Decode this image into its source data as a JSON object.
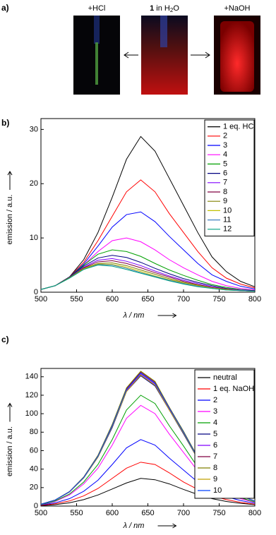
{
  "panel_a": {
    "panel_label": "a)",
    "photos": [
      {
        "label": "+HCl"
      },
      {
        "label_parts": [
          "1",
          " in H",
          "2",
          "O"
        ]
      },
      {
        "label": "+NaOH"
      }
    ]
  },
  "chart_data": [
    {
      "type": "line",
      "panel_label": "b)",
      "xlabel": "λ / nm",
      "ylabel": "emission / a.u.",
      "x": [
        500,
        520,
        540,
        560,
        580,
        600,
        620,
        640,
        660,
        680,
        700,
        720,
        740,
        760,
        780,
        800
      ],
      "xlim": [
        500,
        800
      ],
      "ylim": [
        0,
        32
      ],
      "xticks": [
        500,
        550,
        600,
        650,
        700,
        750,
        800
      ],
      "yticks": [
        0,
        10,
        20,
        30
      ],
      "legend": "upper right",
      "series": [
        {
          "name": "1 eq. HCl",
          "color": "#000000",
          "values": [
            0.5,
            1.2,
            2.8,
            6,
            11,
            17.5,
            24.5,
            28.7,
            26,
            21,
            16,
            11,
            6.5,
            3.8,
            2,
            1
          ]
        },
        {
          "name": "2",
          "color": "#ff0000",
          "values": [
            0.5,
            1.2,
            2.8,
            5.5,
            9.5,
            14,
            18.5,
            20.7,
            18.5,
            14.5,
            11,
            7.5,
            4.5,
            2.6,
            1.5,
            0.8
          ]
        },
        {
          "name": "3",
          "color": "#0000ff",
          "values": [
            0.5,
            1.2,
            2.8,
            5.2,
            8.5,
            12,
            14.3,
            14.8,
            13,
            10.3,
            7.8,
            5.3,
            3.2,
            2,
            1.1,
            0.6
          ]
        },
        {
          "name": "4",
          "color": "#ff00ff",
          "values": [
            0.5,
            1.2,
            2.8,
            5,
            7.5,
            9.5,
            10,
            9.3,
            7.8,
            6,
            4.5,
            3.2,
            2,
            1.2,
            0.7,
            0.4
          ]
        },
        {
          "name": "5",
          "color": "#00a000",
          "values": [
            0.5,
            1.2,
            2.8,
            5,
            7,
            7.8,
            7.5,
            6.6,
            5.3,
            4.1,
            3.1,
            2.2,
            1.4,
            0.9,
            0.5,
            0.3
          ]
        },
        {
          "name": "6",
          "color": "#000080",
          "values": [
            0.5,
            1.2,
            2.8,
            4.8,
            6.3,
            6.8,
            6.4,
            5.5,
            4.4,
            3.4,
            2.5,
            1.8,
            1.2,
            0.7,
            0.4,
            0.3
          ]
        },
        {
          "name": "7",
          "color": "#8000ff",
          "values": [
            0.5,
            1.2,
            2.7,
            4.6,
            5.9,
            6.2,
            5.7,
            4.9,
            3.9,
            3,
            2.2,
            1.6,
            1,
            0.6,
            0.4,
            0.2
          ]
        },
        {
          "name": "8",
          "color": "#800040",
          "values": [
            0.5,
            1.2,
            2.7,
            4.5,
            5.6,
            5.8,
            5.3,
            4.5,
            3.6,
            2.8,
            2,
            1.4,
            0.9,
            0.6,
            0.3,
            0.2
          ]
        },
        {
          "name": "9",
          "color": "#808000",
          "values": [
            0.5,
            1.2,
            2.7,
            4.4,
            5.3,
            5.4,
            4.9,
            4.1,
            3.3,
            2.5,
            1.8,
            1.3,
            0.8,
            0.5,
            0.3,
            0.2
          ]
        },
        {
          "name": "10",
          "color": "#c0c000",
          "values": [
            0.5,
            1.2,
            2.6,
            4.3,
            5.2,
            5.1,
            4.6,
            3.8,
            3,
            2.3,
            1.7,
            1.2,
            0.8,
            0.5,
            0.3,
            0.2
          ]
        },
        {
          "name": "11",
          "color": "#4080c0",
          "values": [
            0.5,
            1.2,
            2.6,
            4.2,
            5.1,
            5,
            4.4,
            3.6,
            2.9,
            2.2,
            1.6,
            1.1,
            0.7,
            0.4,
            0.3,
            0.2
          ]
        },
        {
          "name": "12",
          "color": "#00a080",
          "values": [
            0.5,
            1.2,
            2.6,
            4.2,
            5,
            4.8,
            4.2,
            3.5,
            2.8,
            2.1,
            1.5,
            1,
            0.7,
            0.4,
            0.3,
            0.2
          ]
        }
      ]
    },
    {
      "type": "line",
      "panel_label": "c)",
      "xlabel": "λ / nm",
      "ylabel": "emission / a.u.",
      "x": [
        500,
        520,
        540,
        560,
        580,
        600,
        620,
        640,
        660,
        680,
        700,
        720,
        740,
        760,
        780,
        800
      ],
      "xlim": [
        500,
        800
      ],
      "ylim": [
        0,
        149
      ],
      "xticks": [
        500,
        550,
        600,
        650,
        700,
        750,
        800
      ],
      "yticks": [
        0,
        20,
        40,
        60,
        80,
        100,
        120,
        140
      ],
      "legend": "upper right",
      "series": [
        {
          "name": "neutral",
          "color": "#000000",
          "values": [
            0.5,
            1.5,
            3.5,
            7,
            12,
            18.5,
            25,
            30,
            28.5,
            24,
            18,
            12.5,
            8,
            5,
            3,
            1.5
          ]
        },
        {
          "name": "1 eq. NaOH",
          "color": "#ff0000",
          "values": [
            0.8,
            2.5,
            5.5,
            11,
            19,
            30,
            41,
            47.5,
            45,
            36,
            26,
            18,
            11,
            7,
            4,
            2
          ]
        },
        {
          "name": "2",
          "color": "#0000ff",
          "values": [
            1.2,
            3.5,
            8,
            16,
            28,
            45,
            63,
            72,
            66,
            52,
            39,
            26,
            16,
            10,
            6,
            3
          ]
        },
        {
          "name": "3",
          "color": "#ff00ff",
          "values": [
            1.5,
            5,
            12,
            24,
            41,
            66,
            95,
            109,
            100,
            78,
            58,
            38,
            23,
            14,
            8,
            4
          ]
        },
        {
          "name": "4",
          "color": "#00a000",
          "values": [
            1.5,
            5.5,
            13,
            26,
            45,
            72,
            104,
            120,
            111,
            87,
            65,
            42,
            26,
            15,
            9,
            4.5
          ]
        },
        {
          "name": "5",
          "color": "#000080",
          "values": [
            2,
            6.4,
            15.2,
            30.4,
            53,
            85,
            124,
            141,
            130,
            104,
            78,
            51,
            31,
            19,
            11,
            5.4
          ]
        },
        {
          "name": "6",
          "color": "#8000ff",
          "values": [
            2,
            6.5,
            15.4,
            30.8,
            53.5,
            86,
            125,
            143,
            132,
            105,
            79,
            52,
            32,
            19,
            11,
            5.5
          ]
        },
        {
          "name": "7",
          "color": "#800040",
          "values": [
            2,
            6.6,
            15.6,
            31.3,
            54.5,
            88,
            127,
            145,
            134,
            107,
            80,
            53,
            32,
            19,
            11,
            5.5
          ]
        },
        {
          "name": "8",
          "color": "#808000",
          "values": [
            2,
            6.6,
            15.7,
            31.5,
            55,
            88.5,
            128,
            146,
            135,
            107,
            81,
            53,
            33,
            20,
            11,
            5.6
          ]
        },
        {
          "name": "9",
          "color": "#c0a000",
          "values": [
            2,
            6.4,
            15.3,
            30.6,
            53,
            86,
            124,
            142,
            131,
            104,
            79,
            51,
            31,
            19,
            11,
            5.4
          ]
        },
        {
          "name": "10",
          "color": "#0040ff",
          "values": [
            2,
            6.5,
            15.5,
            31,
            54,
            87,
            126,
            144,
            133,
            106,
            80,
            52,
            32,
            19,
            11,
            5.5
          ]
        }
      ]
    }
  ]
}
